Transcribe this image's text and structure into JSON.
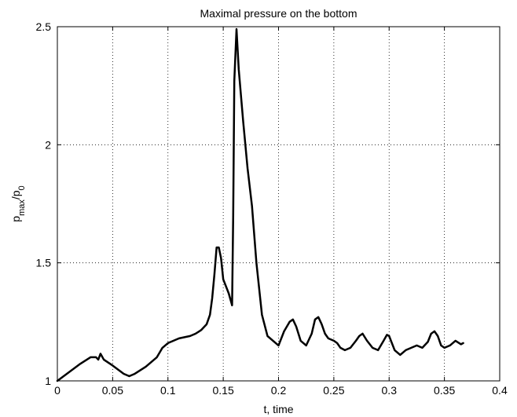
{
  "chart_data": {
    "type": "line",
    "title": "Maximal pressure on the bottom",
    "xlabel": "t, time",
    "ylabel": {
      "base": "p",
      "sub1": "max",
      "sep": "/p",
      "sub2": "0"
    },
    "xlim": [
      0,
      0.4
    ],
    "ylim": [
      1,
      2.5
    ],
    "xticks": [
      0,
      0.05,
      0.1,
      0.15,
      0.2,
      0.25,
      0.3,
      0.35,
      0.4
    ],
    "xtick_labels": [
      "0",
      "0.05",
      "0.1",
      "0.15",
      "0.2",
      "0.25",
      "0.3",
      "0.35",
      "0.4"
    ],
    "yticks": [
      1,
      1.5,
      2,
      2.5
    ],
    "ytick_labels": [
      "1",
      "1.5",
      "2",
      "2.5"
    ],
    "grid": true,
    "line_color": "#000000",
    "series": [
      {
        "x": [
          0,
          0.01,
          0.02,
          0.03,
          0.035,
          0.037,
          0.039,
          0.042,
          0.05,
          0.06,
          0.065,
          0.07,
          0.08,
          0.09,
          0.095,
          0.1,
          0.105,
          0.11,
          0.115,
          0.12,
          0.125,
          0.13,
          0.135,
          0.138,
          0.14,
          0.142,
          0.144,
          0.146,
          0.148,
          0.15,
          0.155,
          0.158,
          0.159,
          0.16,
          0.162,
          0.164,
          0.168,
          0.172,
          0.176,
          0.18,
          0.185,
          0.19,
          0.195,
          0.2,
          0.205,
          0.21,
          0.213,
          0.216,
          0.22,
          0.225,
          0.23,
          0.233,
          0.236,
          0.239,
          0.242,
          0.245,
          0.25,
          0.253,
          0.256,
          0.26,
          0.265,
          0.27,
          0.273,
          0.276,
          0.28,
          0.285,
          0.29,
          0.295,
          0.298,
          0.3,
          0.305,
          0.31,
          0.315,
          0.32,
          0.325,
          0.33,
          0.335,
          0.338,
          0.341,
          0.344,
          0.347,
          0.35,
          0.355,
          0.36,
          0.365,
          0.367
        ],
        "y": [
          1.0,
          1.035,
          1.07,
          1.1,
          1.1,
          1.09,
          1.115,
          1.09,
          1.065,
          1.03,
          1.02,
          1.03,
          1.06,
          1.1,
          1.14,
          1.16,
          1.17,
          1.18,
          1.185,
          1.19,
          1.2,
          1.215,
          1.24,
          1.28,
          1.35,
          1.45,
          1.565,
          1.565,
          1.52,
          1.43,
          1.37,
          1.32,
          1.7,
          2.27,
          2.49,
          2.32,
          2.1,
          1.9,
          1.74,
          1.5,
          1.28,
          1.19,
          1.17,
          1.15,
          1.21,
          1.25,
          1.26,
          1.23,
          1.17,
          1.15,
          1.2,
          1.26,
          1.27,
          1.24,
          1.2,
          1.18,
          1.17,
          1.16,
          1.14,
          1.13,
          1.14,
          1.17,
          1.19,
          1.2,
          1.17,
          1.14,
          1.13,
          1.17,
          1.195,
          1.19,
          1.13,
          1.11,
          1.13,
          1.14,
          1.15,
          1.14,
          1.165,
          1.2,
          1.21,
          1.19,
          1.15,
          1.14,
          1.15,
          1.17,
          1.155,
          1.16
        ]
      }
    ]
  }
}
